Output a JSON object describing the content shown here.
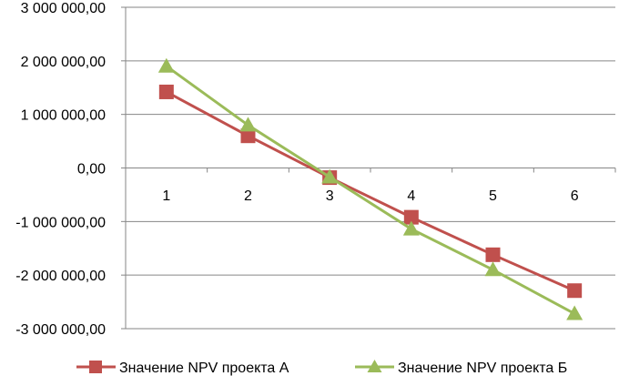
{
  "chart_data": {
    "type": "line",
    "x": [
      "1",
      "2",
      "3",
      "4",
      "5",
      "6"
    ],
    "series": [
      {
        "name": "Значение NPV проекта А",
        "color": "#c0504d",
        "marker": "square",
        "values": [
          1420000,
          600000,
          -180000,
          -920000,
          -1620000,
          -2290000
        ]
      },
      {
        "name": "Значение NPV проекта Б",
        "color": "#9bbb59",
        "marker": "triangle",
        "values": [
          1900000,
          800000,
          -170000,
          -1140000,
          -1900000,
          -2720000
        ]
      }
    ],
    "y_ticks": [
      "3 000 000,00",
      "2 000 000,00",
      "1 000 000,00",
      "0,00",
      "-1 000 000,00",
      "-2 000 000,00",
      "-3 000 000,00"
    ],
    "ylim": [
      -3000000,
      3000000
    ],
    "grid": "horizontal",
    "legend_position": "bottom",
    "axis_color": "#868686",
    "grid_color": "#868686"
  }
}
